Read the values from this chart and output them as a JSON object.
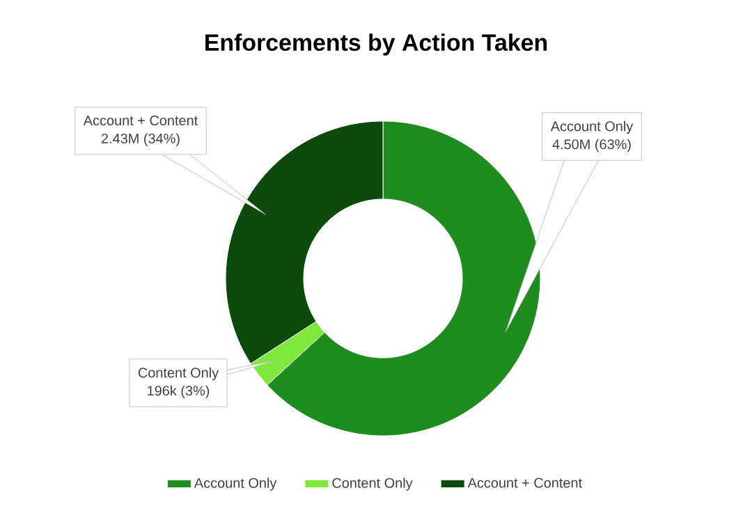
{
  "chart_data": {
    "type": "donut",
    "title": "Enforcements by Action Taken",
    "categories": [
      "Account Only",
      "Content Only",
      "Account + Content"
    ],
    "values": [
      4500000,
      196000,
      2430000
    ],
    "value_labels": [
      "4.50M (63%)",
      "196k (3%)",
      "2.43M (34%)"
    ],
    "colors": [
      "#1f8c1f",
      "#7ee83c",
      "#0b4a0b"
    ],
    "legend": "bottom"
  }
}
